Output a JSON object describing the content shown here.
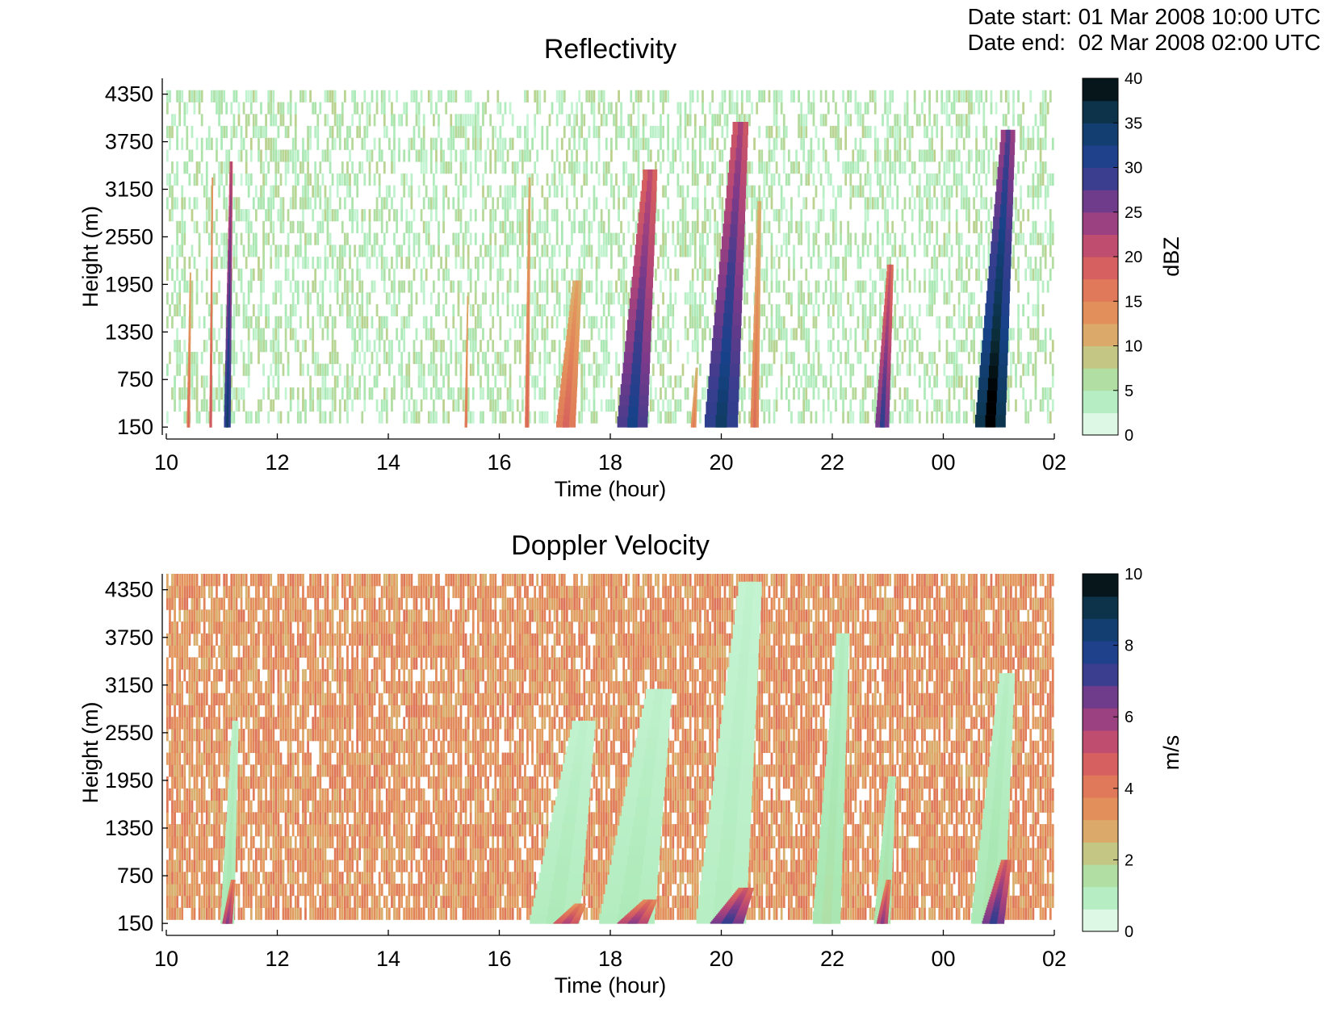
{
  "header": {
    "date_start": "Date start: 01 Mar 2008 10:00 UTC",
    "date_end": "Date end:  02 Mar 2008 02:00 UTC"
  },
  "chart_data": [
    {
      "type": "heatmap",
      "title": "Reflectivity",
      "xlabel": "Time (hour)",
      "ylabel": "Height (m)",
      "x_ticks": [
        "10",
        "12",
        "14",
        "16",
        "18",
        "20",
        "22",
        "00",
        "02"
      ],
      "x_range_hours": [
        10,
        26
      ],
      "y_ticks": [
        150,
        750,
        1350,
        1950,
        2550,
        3150,
        3750,
        4350
      ],
      "y_range": [
        50,
        4550
      ],
      "colorbar": {
        "label": "dBZ",
        "ticks": [
          0,
          5,
          10,
          15,
          20,
          25,
          30,
          35,
          40
        ],
        "range": [
          0,
          40
        ]
      },
      "background": {
        "value_range": [
          2,
          8
        ],
        "coverage": 0.42,
        "top_height": 4450
      },
      "features": [
        {
          "start_time": 10.4,
          "height_top": 2100,
          "value": 16,
          "width_hours": 0.06
        },
        {
          "start_time": 10.8,
          "height_top": 3300,
          "value": 18,
          "width_hours": 0.05
        },
        {
          "start_time": 11.1,
          "height_top": 3500,
          "value": 30,
          "width_hours": 0.12
        },
        {
          "start_time": 15.4,
          "height_top": 1800,
          "value": 15,
          "width_hours": 0.05
        },
        {
          "start_time": 16.5,
          "height_top": 3300,
          "value": 16,
          "width_hours": 0.08
        },
        {
          "start_time": 17.2,
          "height_top": 2000,
          "value": 16,
          "width_hours": 0.35
        },
        {
          "start_time": 18.4,
          "height_top": 3400,
          "value": 28,
          "width_hours": 0.55
        },
        {
          "start_time": 19.5,
          "height_top": 900,
          "value": 14,
          "width_hours": 0.1
        },
        {
          "start_time": 20.0,
          "height_top": 4000,
          "value": 30,
          "width_hours": 0.6
        },
        {
          "start_time": 20.6,
          "height_top": 3000,
          "value": 15,
          "width_hours": 0.15
        },
        {
          "start_time": 22.9,
          "height_top": 2200,
          "value": 26,
          "width_hours": 0.25
        },
        {
          "start_time": 24.85,
          "height_top": 3900,
          "value": 36,
          "width_hours": 0.55
        }
      ]
    },
    {
      "type": "heatmap",
      "title": "Doppler Velocity",
      "xlabel": "Time (hour)",
      "ylabel": "Height (m)",
      "x_ticks": [
        "10",
        "12",
        "14",
        "16",
        "18",
        "20",
        "22",
        "00",
        "02"
      ],
      "x_range_hours": [
        10,
        26
      ],
      "y_ticks": [
        150,
        750,
        1350,
        1950,
        2550,
        3150,
        3750,
        4350
      ],
      "y_range": [
        50,
        4550
      ],
      "colorbar": {
        "label": "m/s",
        "ticks": [
          0,
          2,
          4,
          6,
          8,
          10
        ],
        "range": [
          0,
          10
        ]
      },
      "background": {
        "value_range": [
          2.6,
          4.2
        ],
        "coverage": 0.82,
        "top_height": 4550
      },
      "features": [
        {
          "start_time": 11.1,
          "height_top": 2700,
          "value": 1.2,
          "width_hours": 0.25
        },
        {
          "start_time": 17.0,
          "height_top": 2700,
          "value": 1.0,
          "width_hours": 0.9
        },
        {
          "start_time": 18.3,
          "height_top": 3100,
          "value": 1.0,
          "width_hours": 1.0
        },
        {
          "start_time": 20.0,
          "height_top": 4450,
          "value": 0.9,
          "width_hours": 0.9
        },
        {
          "start_time": 21.9,
          "height_top": 3800,
          "value": 1.3,
          "width_hours": 0.5
        },
        {
          "start_time": 22.9,
          "height_top": 2000,
          "value": 1.4,
          "width_hours": 0.3
        },
        {
          "start_time": 24.8,
          "height_top": 3300,
          "value": 1.2,
          "width_hours": 0.6
        },
        {
          "start_time": 11.1,
          "height_top": 700,
          "value": 5.5,
          "width_hours": 0.18
        },
        {
          "start_time": 17.2,
          "height_top": 400,
          "value": 5.0,
          "width_hours": 0.45
        },
        {
          "start_time": 18.4,
          "height_top": 450,
          "value": 5.5,
          "width_hours": 0.55
        },
        {
          "start_time": 20.1,
          "height_top": 600,
          "value": 6.5,
          "width_hours": 0.6
        },
        {
          "start_time": 22.9,
          "height_top": 700,
          "value": 5.5,
          "width_hours": 0.2
        },
        {
          "start_time": 24.9,
          "height_top": 950,
          "value": 6.5,
          "width_hours": 0.4
        }
      ]
    }
  ]
}
